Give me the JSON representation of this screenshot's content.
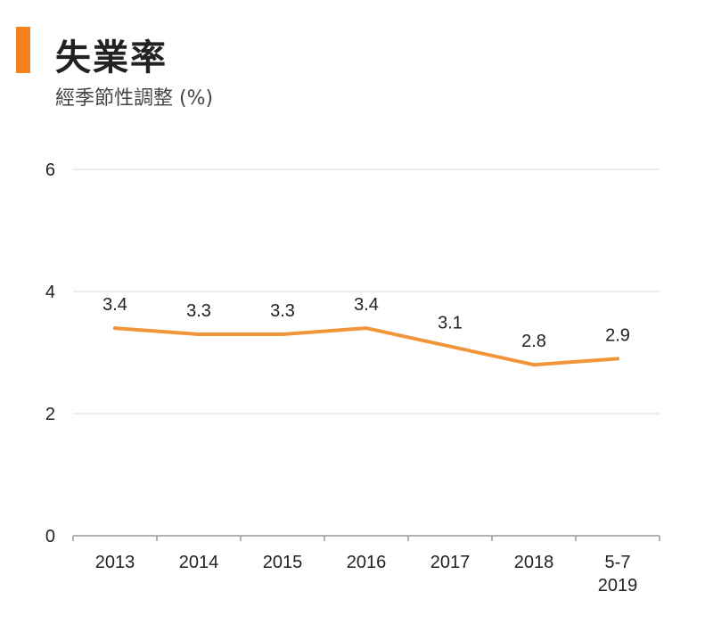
{
  "header": {
    "title": "失業率",
    "subtitle": "經季節性調整 (%)"
  },
  "colors": {
    "accent": "#f58220",
    "line": "#f0953a",
    "grid": "#d9d9d9",
    "axis": "#999999"
  },
  "chart_data": {
    "type": "line",
    "title": "失業率",
    "subtitle": "經季節性調整 (%)",
    "xlabel": "",
    "ylabel": "",
    "categories": [
      "2013",
      "2014",
      "2015",
      "2016",
      "2017",
      "2018",
      "5-7\n2019"
    ],
    "category_lines": [
      [
        "2013"
      ],
      [
        "2014"
      ],
      [
        "2015"
      ],
      [
        "2016"
      ],
      [
        "2017"
      ],
      [
        "2018"
      ],
      [
        "5-7",
        "2019"
      ]
    ],
    "series": [
      {
        "name": "失業率",
        "values": [
          3.4,
          3.3,
          3.3,
          3.4,
          3.1,
          2.8,
          2.9
        ]
      }
    ],
    "data_labels": [
      "3.4",
      "3.3",
      "3.3",
      "3.4",
      "3.1",
      "2.8",
      "2.9"
    ],
    "yticks": [
      0,
      2,
      4,
      6
    ],
    "ylim": [
      0,
      6
    ],
    "grid": true,
    "legend": "none"
  }
}
